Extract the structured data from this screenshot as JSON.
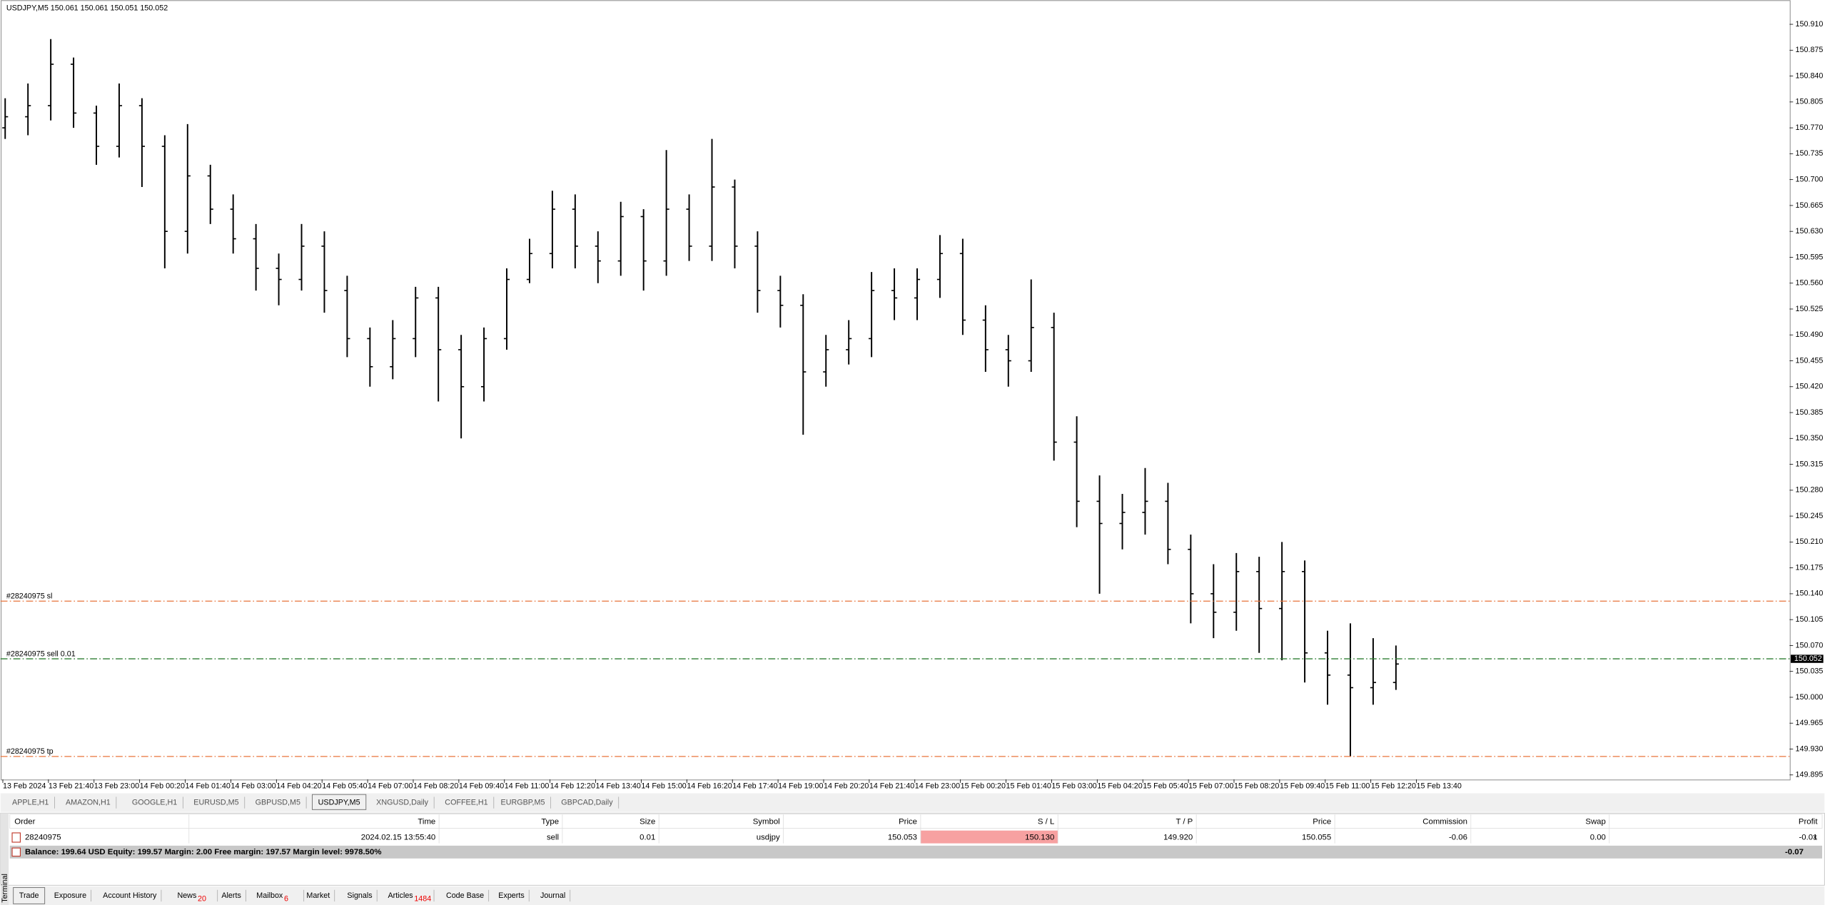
{
  "chart_window": {
    "title": "USDJPY,M5  150.061 150.061 150.051 150.052"
  },
  "chart_data": {
    "type": "ohlc",
    "color": "#000000",
    "xticks": [
      "13 Feb 2024",
      "13 Feb 21:40",
      "13 Feb 23:00",
      "14 Feb 00:20",
      "14 Feb 01:40",
      "14 Feb 03:00",
      "14 Feb 04:20",
      "14 Feb 05:40",
      "14 Feb 07:00",
      "14 Feb 08:20",
      "14 Feb 09:40",
      "14 Feb 11:00",
      "14 Feb 12:20",
      "14 Feb 13:40",
      "14 Feb 15:00",
      "14 Feb 16:20",
      "14 Feb 17:40",
      "14 Feb 19:00",
      "14 Feb 20:20",
      "14 Feb 21:40",
      "14 Feb 23:00",
      "15 Feb 00:20",
      "15 Feb 01:40",
      "15 Feb 03:00",
      "15 Feb 04:20",
      "15 Feb 05:40",
      "15 Feb 07:00",
      "15 Feb 08:20",
      "15 Feb 09:40",
      "15 Feb 11:00",
      "15 Feb 12:20",
      "15 Feb 13:40"
    ],
    "open": [
      150.77,
      150.785,
      150.8,
      150.856,
      150.79,
      150.745,
      150.8,
      150.745,
      150.63,
      150.705,
      150.66,
      150.62,
      150.58,
      150.565,
      150.61,
      150.55,
      150.485,
      150.447,
      150.485,
      150.54,
      150.47,
      150.42,
      150.485,
      150.565,
      150.6,
      150.66,
      150.61,
      150.59,
      150.65,
      150.59,
      150.66,
      150.61,
      150.69,
      150.61,
      150.55,
      150.53,
      150.44,
      150.47,
      150.485,
      150.55,
      150.54,
      150.565,
      150.6,
      150.51,
      150.47,
      150.455,
      150.5,
      150.345,
      150.265,
      150.235,
      150.25,
      150.265,
      150.2,
      150.14,
      150.115,
      150.17,
      150.12,
      150.17,
      150.06,
      150.03,
      150.013,
      150.02
    ],
    "high": [
      150.81,
      150.83,
      150.89,
      150.865,
      150.8,
      150.83,
      150.81,
      150.76,
      150.775,
      150.72,
      150.68,
      150.64,
      150.6,
      150.64,
      150.63,
      150.57,
      150.5,
      150.51,
      150.555,
      150.555,
      150.49,
      150.5,
      150.58,
      150.62,
      150.685,
      150.68,
      150.63,
      150.67,
      150.66,
      150.74,
      150.68,
      150.755,
      150.7,
      150.63,
      150.57,
      150.545,
      150.49,
      150.51,
      150.575,
      150.58,
      150.58,
      150.625,
      150.62,
      150.53,
      150.49,
      150.565,
      150.52,
      150.38,
      150.3,
      150.275,
      150.31,
      150.29,
      150.22,
      150.18,
      150.195,
      150.19,
      150.21,
      150.185,
      150.09,
      150.1,
      150.08,
      150.07
    ],
    "low": [
      150.755,
      150.76,
      150.78,
      150.77,
      150.72,
      150.73,
      150.69,
      150.58,
      150.6,
      150.64,
      150.6,
      150.55,
      150.53,
      150.55,
      150.52,
      150.46,
      150.42,
      150.43,
      150.46,
      150.4,
      150.35,
      150.4,
      150.47,
      150.56,
      150.58,
      150.58,
      150.56,
      150.57,
      150.55,
      150.57,
      150.59,
      150.59,
      150.58,
      150.52,
      150.5,
      150.355,
      150.42,
      150.45,
      150.46,
      150.51,
      150.51,
      150.54,
      150.49,
      150.44,
      150.42,
      150.44,
      150.32,
      150.23,
      150.14,
      150.2,
      150.22,
      150.18,
      150.1,
      150.08,
      150.09,
      150.06,
      150.05,
      150.02,
      149.99,
      149.92,
      149.99,
      150.01
    ],
    "close": [
      150.785,
      150.8,
      150.856,
      150.79,
      150.745,
      150.8,
      150.745,
      150.63,
      150.705,
      150.66,
      150.62,
      150.58,
      150.565,
      150.61,
      150.55,
      150.485,
      150.447,
      150.485,
      150.54,
      150.47,
      150.42,
      150.485,
      150.565,
      150.6,
      150.66,
      150.61,
      150.59,
      150.65,
      150.59,
      150.66,
      150.61,
      150.69,
      150.61,
      150.55,
      150.53,
      150.44,
      150.47,
      150.485,
      150.55,
      150.54,
      150.565,
      150.6,
      150.51,
      150.47,
      150.455,
      150.5,
      150.345,
      150.265,
      150.235,
      150.25,
      150.265,
      150.2,
      150.14,
      150.115,
      150.17,
      150.12,
      150.17,
      150.06,
      150.03,
      150.013,
      150.02,
      150.045
    ],
    "ylim": [
      149.889,
      150.935
    ],
    "yticks": [
      149.895,
      {
        "value": 149.93,
        "label": "149.930"
      },
      149.965,
      {
        "value": 150,
        "label": "150.000"
      },
      150.035,
      {
        "value": 150.07,
        "label": "150.070"
      },
      150.105,
      {
        "value": 150.14,
        "label": "150.140"
      },
      150.175,
      {
        "value": 150.21,
        "label": "150.210"
      },
      150.245,
      {
        "value": 150.28,
        "label": "150.280"
      },
      150.315,
      {
        "value": 150.35,
        "label": "150.350"
      },
      150.385,
      {
        "value": 150.42,
        "label": "150.420"
      },
      150.455,
      {
        "value": 150.49,
        "label": "150.490"
      },
      150.525,
      {
        "value": 150.56,
        "label": "150.560"
      },
      150.595,
      {
        "value": 150.63,
        "label": "150.630"
      },
      150.665,
      {
        "value": 150.7,
        "label": "150.700"
      },
      150.735,
      {
        "value": 150.77,
        "label": "150.770"
      },
      150.805,
      {
        "value": 150.84,
        "label": "150.840"
      },
      150.875,
      {
        "value": 150.91,
        "label": "150.910"
      }
    ],
    "levels": [
      {
        "label": "#28240975 sl",
        "value": 150.13,
        "color": "#e8743b"
      },
      {
        "label": "#28240975 sell 0.01",
        "value": 150.052,
        "color": "#2e7d32"
      },
      {
        "label": "#28240975 tp",
        "value": 149.92,
        "color": "#e8743b"
      }
    ],
    "last_price": {
      "value": 150.052,
      "label": "150.052"
    }
  },
  "chart_tabs": {
    "items": [
      "APPLE,H1",
      "AMAZON,H1",
      "GOOGLE,H1",
      "EURUSD,M5",
      "GBPUSD,M5",
      "USDJPY,M5",
      "XNGUSD,Daily",
      "COFFEE,H1",
      "EURGBP,M5",
      "GBPCAD,Daily"
    ],
    "active": 5
  },
  "terminal": {
    "label": "Terminal",
    "columns": [
      "Order",
      "Time",
      "Type",
      "Size",
      "Symbol",
      "Price",
      "S / L",
      "T / P",
      "Price",
      "Commission",
      "Swap",
      "Profit"
    ],
    "rows": [
      [
        "28240975",
        "2024.02.15 13:55:40",
        "sell",
        "0.01",
        "usdjpy",
        "150.053",
        "150.130",
        "149.920",
        "150.055",
        "-0.06",
        "0.00",
        "-0.01"
      ]
    ],
    "summary": {
      "text": "Balance: 199.64 USD  Equity: 199.57  Margin: 2.00  Free margin: 197.57  Margin level: 9978.50%",
      "profit": "-0.07"
    },
    "tabs": [
      {
        "label": "Trade"
      },
      {
        "label": "Exposure"
      },
      {
        "label": "Account History"
      },
      {
        "label": "News",
        "badge": "20"
      },
      {
        "label": "Alerts"
      },
      {
        "label": "Mailbox",
        "badge": "6"
      },
      {
        "label": "Market"
      },
      {
        "label": "Signals"
      },
      {
        "label": "Articles",
        "badge": "1484"
      },
      {
        "label": "Code Base"
      },
      {
        "label": "Experts"
      },
      {
        "label": "Journal"
      }
    ],
    "active_tab": 0
  }
}
